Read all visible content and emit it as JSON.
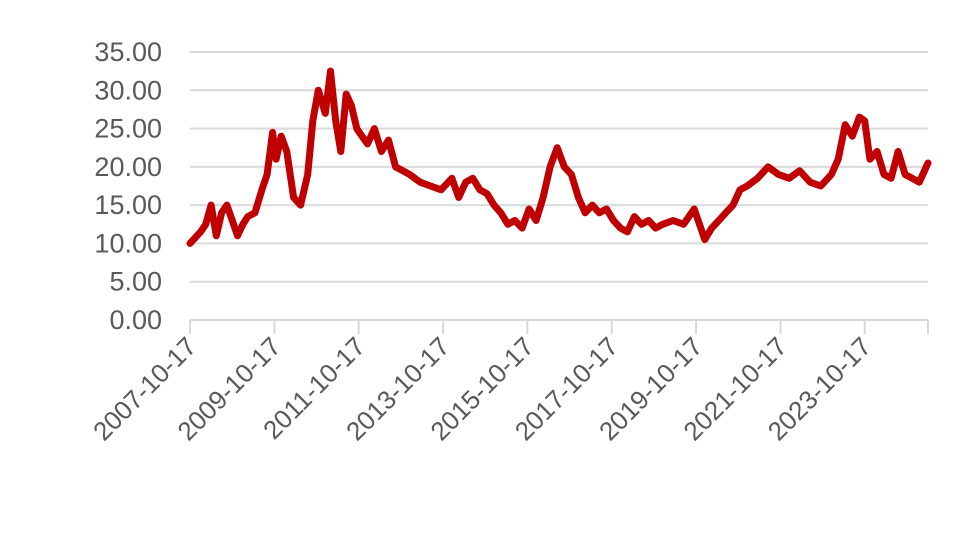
{
  "chart_data": {
    "type": "line",
    "title": "",
    "xlabel": "",
    "ylabel": "",
    "ylim": [
      0,
      35
    ],
    "yticks": [
      "0.00",
      "5.00",
      "10.00",
      "15.00",
      "20.00",
      "25.00",
      "30.00",
      "35.00"
    ],
    "x_tick_labels": [
      "2007-10-17",
      "2009-10-17",
      "2011-10-17",
      "2013-10-17",
      "2015-10-17",
      "2017-10-17",
      "2019-10-17",
      "2021-10-17",
      "2023-10-17"
    ],
    "x_range": [
      "2007-10-17",
      "2025-04-17"
    ],
    "grid": "horizontal",
    "legend": "none",
    "series": [
      {
        "color": "#c00000",
        "x": [
          "2007-10-17",
          "2008-01-17",
          "2008-03-01",
          "2008-04-17",
          "2008-06-01",
          "2008-07-17",
          "2008-09-01",
          "2008-10-17",
          "2008-12-01",
          "2009-01-17",
          "2009-03-01",
          "2009-05-01",
          "2009-07-01",
          "2009-08-15",
          "2009-10-01",
          "2009-11-01",
          "2009-12-15",
          "2010-02-01",
          "2010-04-01",
          "2010-06-01",
          "2010-08-01",
          "2010-09-15",
          "2010-11-01",
          "2011-01-01",
          "2011-02-15",
          "2011-04-01",
          "2011-05-15",
          "2011-07-01",
          "2011-08-15",
          "2011-10-01",
          "2011-11-15",
          "2012-01-01",
          "2012-03-01",
          "2012-05-01",
          "2012-07-01",
          "2012-09-01",
          "2012-11-01",
          "2013-01-01",
          "2013-04-01",
          "2013-07-01",
          "2013-10-01",
          "2014-01-01",
          "2014-03-01",
          "2014-05-01",
          "2014-07-01",
          "2014-09-01",
          "2014-11-01",
          "2015-01-01",
          "2015-03-01",
          "2015-05-01",
          "2015-07-01",
          "2015-09-01",
          "2015-11-01",
          "2016-01-01",
          "2016-03-01",
          "2016-05-01",
          "2016-07-01",
          "2016-09-01",
          "2016-11-01",
          "2017-01-01",
          "2017-03-01",
          "2017-05-01",
          "2017-07-01",
          "2017-09-01",
          "2017-11-01",
          "2018-01-01",
          "2018-03-01",
          "2018-05-01",
          "2018-07-01",
          "2018-09-01",
          "2018-11-01",
          "2019-01-01",
          "2019-04-01",
          "2019-07-01",
          "2019-10-01",
          "2020-01-01",
          "2020-03-01",
          "2020-05-01",
          "2020-07-01",
          "2020-09-01",
          "2020-11-01",
          "2021-01-01",
          "2021-04-01",
          "2021-07-01",
          "2021-10-01",
          "2022-01-01",
          "2022-04-01",
          "2022-07-01",
          "2022-10-01",
          "2023-01-01",
          "2023-03-01",
          "2023-05-01",
          "2023-07-01",
          "2023-09-01",
          "2023-10-17",
          "2023-12-01",
          "2024-02-01",
          "2024-04-01",
          "2024-06-01",
          "2024-08-01",
          "2024-10-01",
          "2024-12-01",
          "2025-02-01",
          "2025-04-17"
        ],
        "y": [
          10.0,
          11.5,
          12.5,
          15.0,
          11.0,
          14.0,
          15.0,
          13.0,
          11.0,
          12.5,
          13.5,
          14.0,
          17.0,
          19.0,
          24.5,
          21.0,
          24.0,
          22.0,
          16.0,
          15.0,
          19.0,
          26.0,
          30.0,
          27.0,
          32.5,
          26.0,
          22.0,
          29.5,
          28.0,
          25.0,
          24.0,
          23.0,
          25.0,
          22.0,
          23.5,
          20.0,
          19.5,
          19.0,
          18.0,
          17.5,
          17.0,
          18.5,
          16.0,
          18.0,
          18.5,
          17.0,
          16.5,
          15.0,
          14.0,
          12.5,
          13.0,
          12.0,
          14.5,
          13.0,
          16.0,
          20.0,
          22.5,
          20.0,
          19.0,
          16.0,
          14.0,
          15.0,
          14.0,
          14.5,
          13.0,
          12.0,
          11.5,
          13.5,
          12.5,
          13.0,
          12.0,
          12.5,
          13.0,
          12.5,
          14.5,
          10.5,
          12.0,
          13.0,
          14.0,
          15.0,
          17.0,
          17.5,
          18.5,
          20.0,
          19.0,
          18.5,
          19.5,
          18.0,
          17.5,
          19.0,
          21.0,
          25.5,
          24.0,
          26.5,
          26.0,
          21.0,
          22.0,
          19.0,
          18.5,
          22.0,
          19.0,
          18.5,
          18.0,
          20.5
        ]
      }
    ]
  }
}
